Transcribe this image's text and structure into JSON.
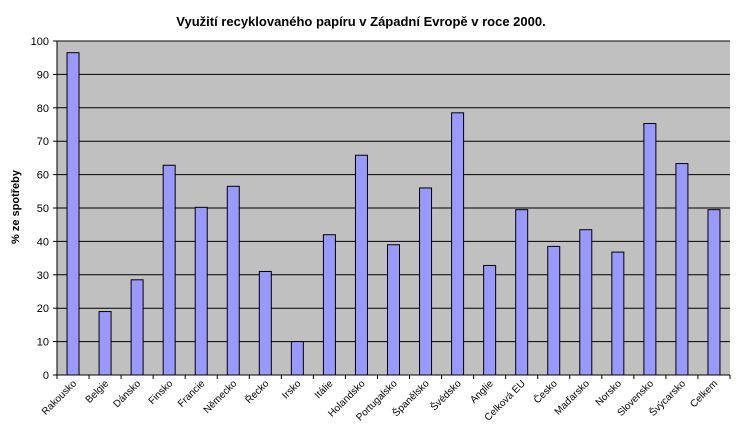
{
  "chart_data": {
    "type": "bar",
    "title": "Využití recyklovaného papíru v Západní Evropě v roce 2000.",
    "xlabel": "",
    "ylabel": "% ze spotřeby",
    "ylim": [
      0,
      100
    ],
    "yticks": [
      0,
      10,
      20,
      30,
      40,
      50,
      60,
      70,
      80,
      90,
      100
    ],
    "grid": true,
    "colors": {
      "plot_bg": "#c0c0c0",
      "bar_fill": "#9999ff",
      "bar_stroke": "#000000",
      "grid": "#000000"
    },
    "categories": [
      "Rakousko",
      "Belgie",
      "Dánsko",
      "Finsko",
      "Francie",
      "Německo",
      "Řecko",
      "Irsko",
      "Itálie",
      "Holandsko",
      "Portugalsko",
      "Španělsko",
      "Švédsko",
      "Anglie",
      "Celková EU",
      "Česko",
      "Maďarsko",
      "Norsko",
      "Slovensko",
      "Švýcarsko",
      "Celkem"
    ],
    "values": [
      96.5,
      19,
      28.5,
      62.8,
      50.2,
      56.5,
      31,
      10,
      42,
      65.8,
      39,
      56,
      78.5,
      32.8,
      49.5,
      38.5,
      43.5,
      36.8,
      75.3,
      63.3,
      49.5
    ]
  }
}
